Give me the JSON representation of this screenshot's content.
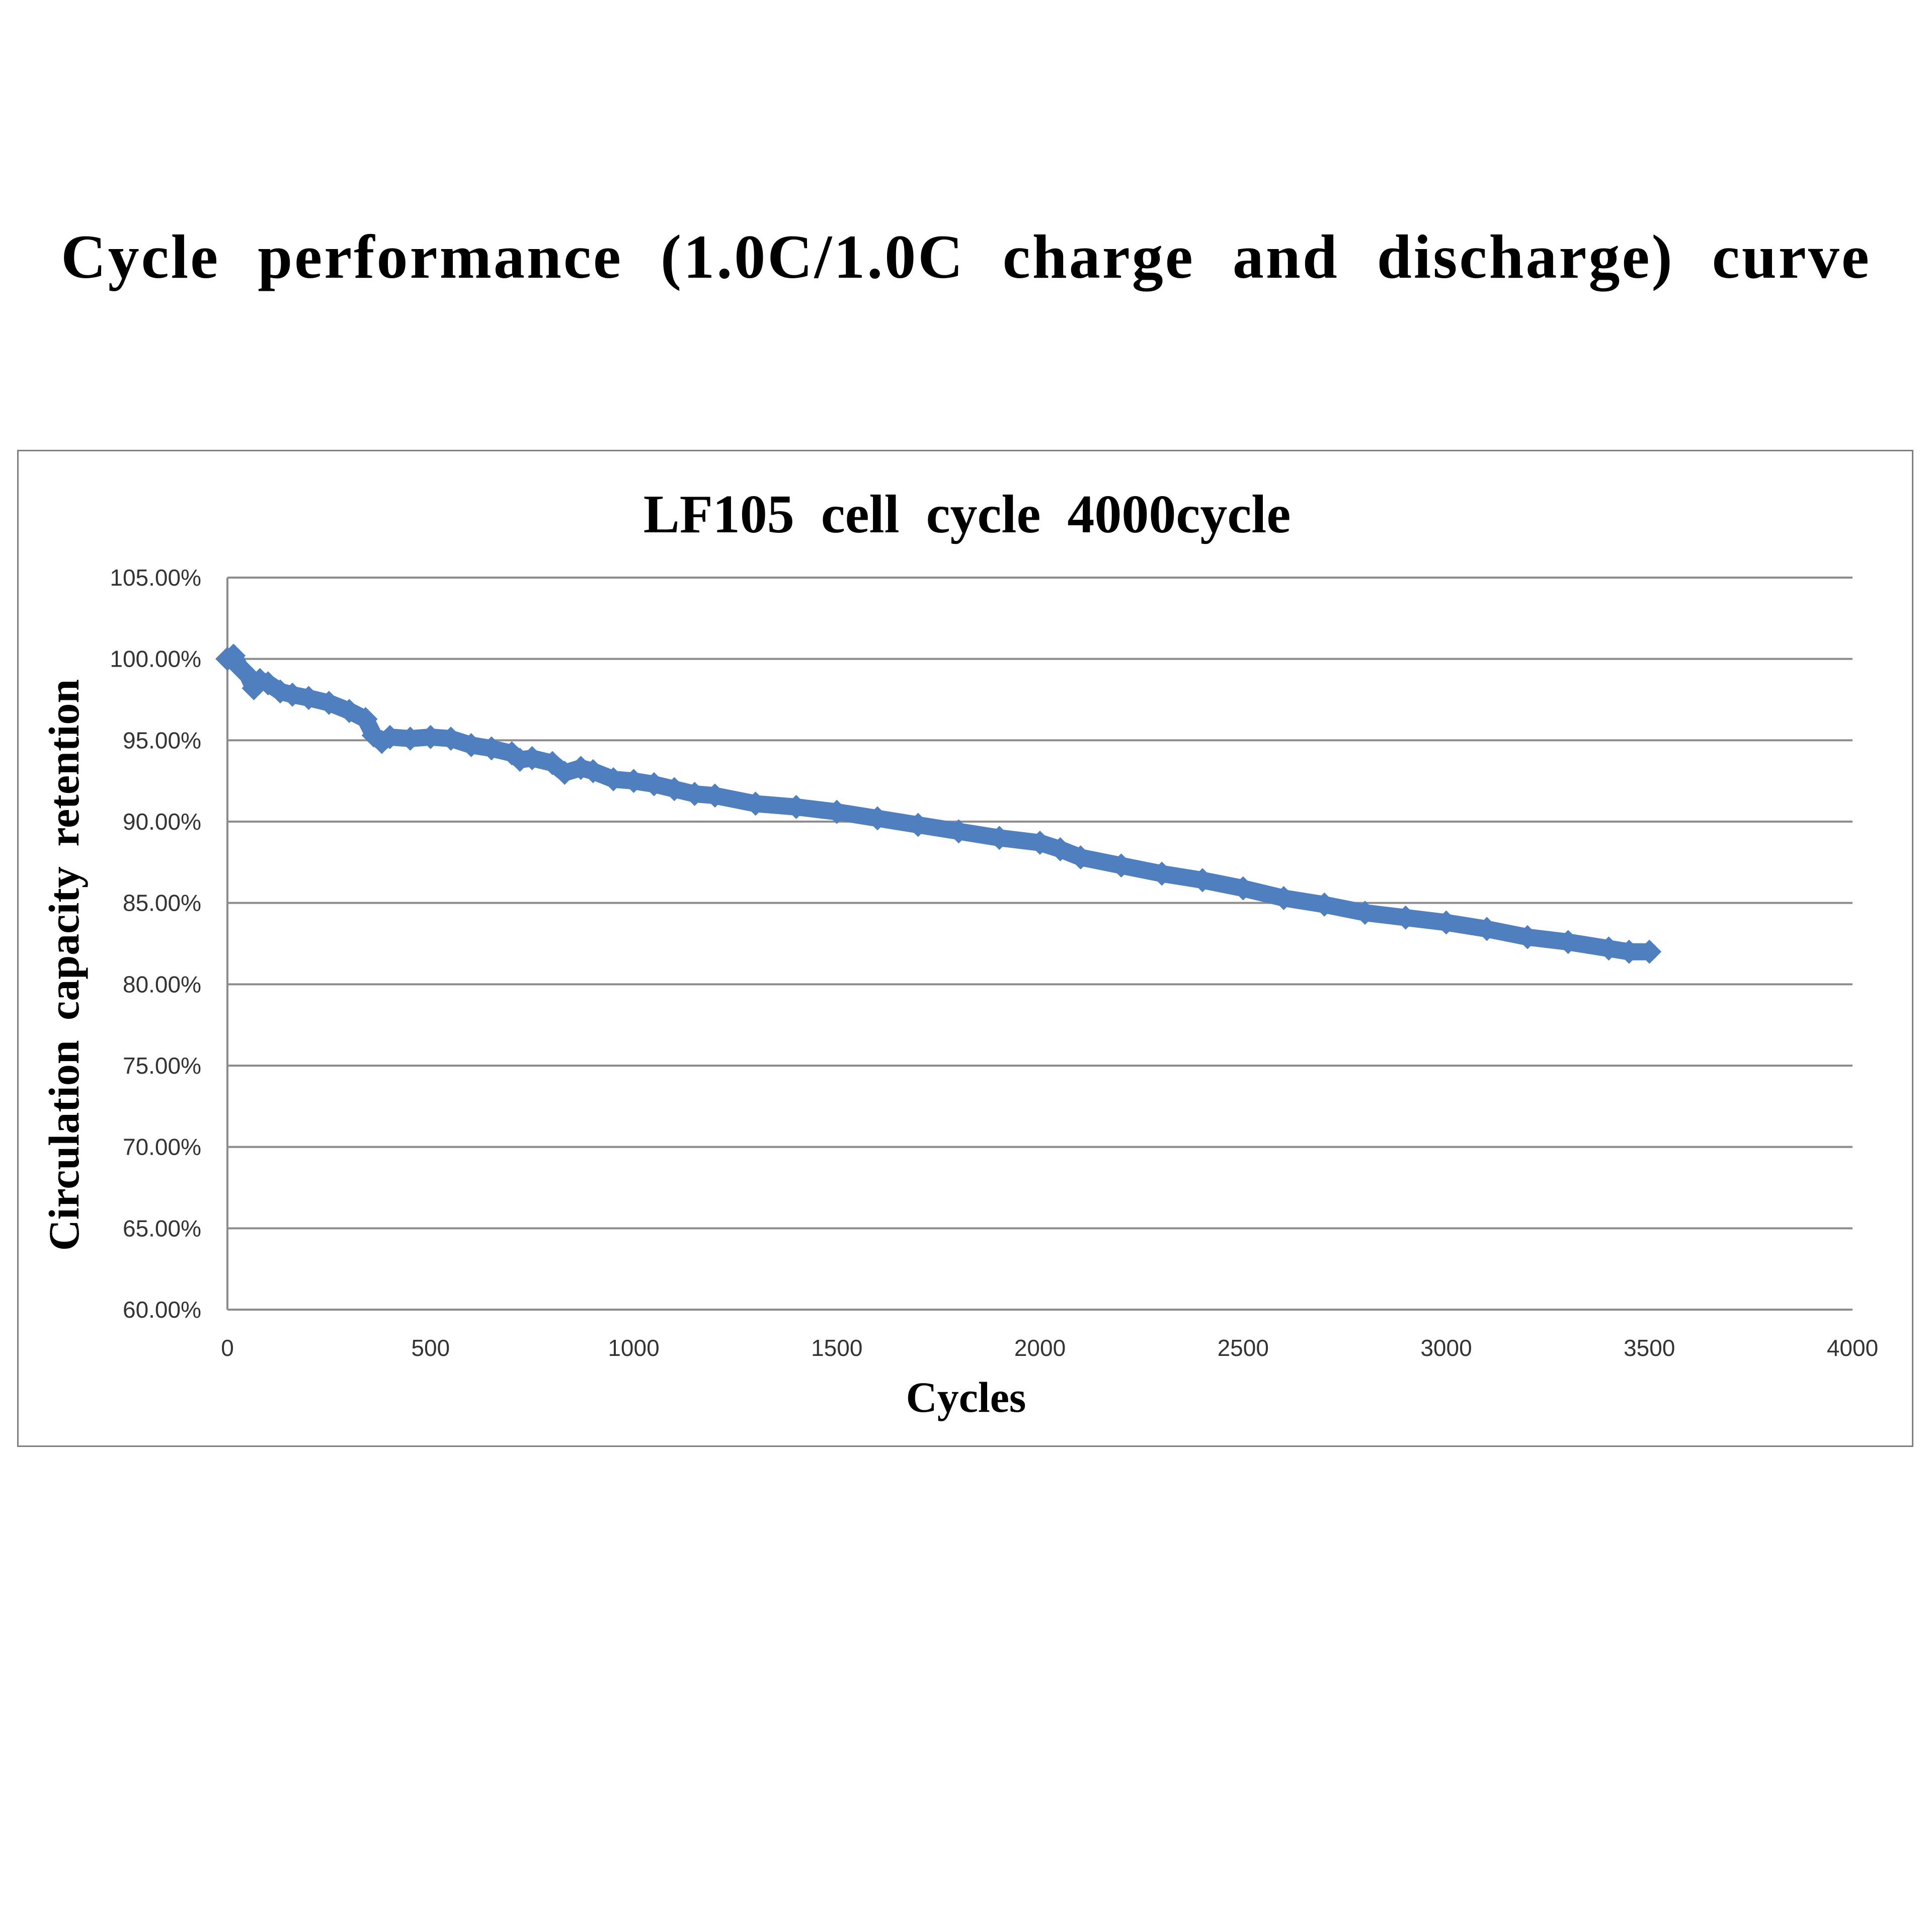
{
  "page": {
    "heading": "Cycle performance (1.0C/1.0C charge and discharge) curve"
  },
  "chart_data": {
    "type": "line",
    "title": "LF105 cell cycle 4000cycle",
    "xlabel": "Cycles",
    "ylabel": "Circulation capacity retention",
    "xlim": [
      0,
      4000
    ],
    "ylim": [
      60,
      105
    ],
    "x_ticks": [
      0,
      500,
      1000,
      1500,
      2000,
      2500,
      3000,
      3500,
      4000
    ],
    "x_tick_labels": [
      "0",
      "500",
      "1000",
      "1500",
      "2000",
      "2500",
      "3000",
      "3500",
      "4000"
    ],
    "y_ticks": [
      60,
      65,
      70,
      75,
      80,
      85,
      90,
      95,
      100,
      105
    ],
    "y_tick_labels": [
      "60.00%",
      "65.00%",
      "70.00%",
      "75.00%",
      "80.00%",
      "85.00%",
      "90.00%",
      "95.00%",
      "100.00%",
      "105.00%"
    ],
    "grid": true,
    "legend": "none",
    "series_color": "#4f7fbf",
    "series": [
      {
        "x": [
          0,
          15,
          30,
          50,
          65,
          80,
          100,
          130,
          160,
          200,
          250,
          300,
          340,
          360,
          380,
          400,
          450,
          500,
          550,
          600,
          650,
          700,
          720,
          750,
          800,
          830,
          870,
          900,
          950,
          1000,
          1050,
          1100,
          1150,
          1200,
          1300,
          1400,
          1500,
          1600,
          1700,
          1800,
          1900,
          2000,
          2050,
          2100,
          2200,
          2300,
          2400,
          2500,
          2600,
          2700,
          2800,
          2900,
          3000,
          3100,
          3200,
          3300,
          3400,
          3450,
          3500
        ],
        "y": [
          100.0,
          100.2,
          99.5,
          99.0,
          98.2,
          98.7,
          98.5,
          98.0,
          97.8,
          97.6,
          97.3,
          96.8,
          96.3,
          95.3,
          94.9,
          95.2,
          95.1,
          95.2,
          95.1,
          94.7,
          94.5,
          94.2,
          93.8,
          93.9,
          93.6,
          93.0,
          93.3,
          93.1,
          92.6,
          92.5,
          92.3,
          92.0,
          91.7,
          91.6,
          91.1,
          90.9,
          90.6,
          90.2,
          89.8,
          89.4,
          89.0,
          88.7,
          88.3,
          87.8,
          87.3,
          86.8,
          86.4,
          85.9,
          85.3,
          84.9,
          84.4,
          84.1,
          83.8,
          83.4,
          82.9,
          82.6,
          82.2,
          82.0,
          82.0
        ]
      }
    ]
  }
}
